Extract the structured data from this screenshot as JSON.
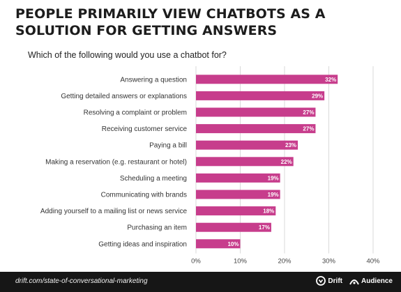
{
  "title": "PEOPLE PRIMARILY VIEW CHATBOTS AS A SOLUTION FOR GETTING ANSWERS",
  "subtitle": "Which of the following would you use a chatbot for?",
  "footer": {
    "source": "drift.com/state-of-conversational-marketing",
    "brands": [
      {
        "label": "Drift",
        "icon": "drift-logo-icon"
      },
      {
        "label": "Audience",
        "icon": "audience-logo-icon"
      }
    ]
  },
  "colors": {
    "bar": "#c73d8c",
    "grid": "#d9d9d9",
    "footer": "#161616"
  },
  "chart_data": {
    "type": "bar",
    "orientation": "horizontal",
    "categories": [
      "Answering a question",
      "Getting detailed answers or explanations",
      "Resolving a complaint or problem",
      "Receiving customer service",
      "Paying a bill",
      "Making a reservation (e.g. restaurant or hotel)",
      "Scheduling a meeting",
      "Communicating with brands",
      "Adding yourself to a mailing list or news service",
      "Purchasing an item",
      "Getting ideas and inspiration"
    ],
    "values": [
      32,
      29,
      27,
      27,
      23,
      22,
      19,
      19,
      18,
      17,
      10
    ],
    "value_labels": [
      "32%",
      "29%",
      "27%",
      "27%",
      "23%",
      "22%",
      "19%",
      "19%",
      "18%",
      "17%",
      "10%"
    ],
    "xlim": [
      0,
      40
    ],
    "xticks": [
      0,
      10,
      20,
      30,
      40
    ],
    "xtick_labels": [
      "0%",
      "10%",
      "20%",
      "30%",
      "40%"
    ],
    "grid": true,
    "legend": "none"
  }
}
